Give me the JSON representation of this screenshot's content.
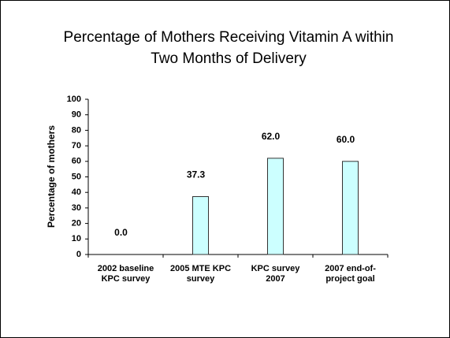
{
  "chart_data": {
    "type": "bar",
    "title": "Percentage of Mothers Receiving Vitamin A within\nTwo Months of Delivery",
    "y_label": "Percentage of mothers",
    "categories": [
      "2002 baseline\nKPC survey",
      "2005 MTE KPC\nsurvey",
      "KPC survey\n2007",
      "2007 end-of-\nproject goal"
    ],
    "values": [
      0,
      37.3,
      62,
      60
    ],
    "value_labels": [
      "0.0",
      "37.3",
      "62.0",
      "60.0"
    ],
    "color": "#ccffff",
    "ylim": [
      0,
      100
    ],
    "yticks": [
      0,
      10,
      20,
      30,
      40,
      50,
      60,
      70,
      80,
      90,
      100
    ],
    "grid": false
  }
}
